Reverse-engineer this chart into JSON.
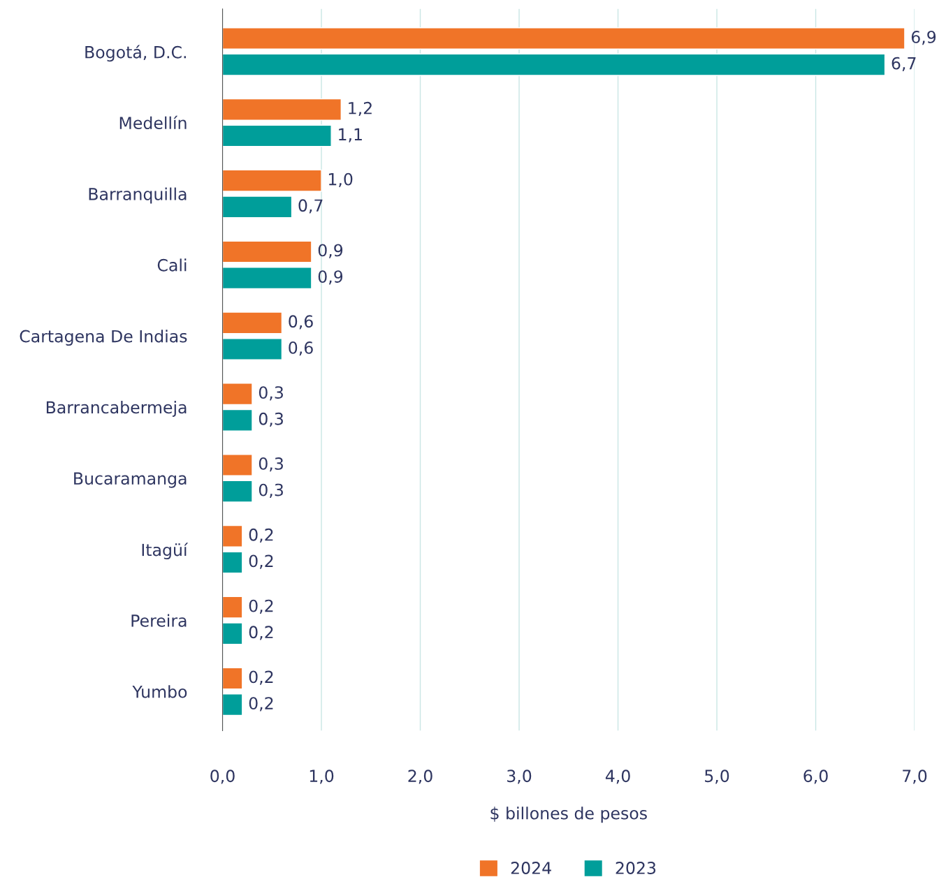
{
  "chart_data": {
    "type": "bar",
    "orientation": "horizontal",
    "xlabel": "$ billones de pesos",
    "categories": [
      "Bogotá, D.C.",
      "Medellín",
      "Barranquilla",
      "Cali",
      "Cartagena De Indias",
      "Barrancabermeja",
      "Bucaramanga",
      "Itagüí",
      "Pereira",
      "Yumbo"
    ],
    "series": [
      {
        "name": "2024",
        "color": "#f07428",
        "values": [
          6.9,
          1.2,
          1.0,
          0.9,
          0.6,
          0.3,
          0.3,
          0.2,
          0.2,
          0.2
        ],
        "value_labels": [
          "6,9",
          "1,2",
          "1,0",
          "0,9",
          "0,6",
          "0,3",
          "0,3",
          "0,2",
          "0,2",
          "0,2"
        ]
      },
      {
        "name": "2023",
        "color": "#009e9a",
        "values": [
          6.7,
          1.1,
          0.7,
          0.9,
          0.6,
          0.3,
          0.3,
          0.2,
          0.2,
          0.2
        ],
        "value_labels": [
          "6,7",
          "1,1",
          "0,7",
          "0,9",
          "0,6",
          "0,3",
          "0,3",
          "0,2",
          "0,2",
          "0,2"
        ]
      }
    ],
    "xlim": [
      0,
      7
    ],
    "xticks": [
      {
        "value": 0,
        "label": "0,0"
      },
      {
        "value": 1,
        "label": "1,0"
      },
      {
        "value": 2,
        "label": "2,0"
      },
      {
        "value": 3,
        "label": "3,0"
      },
      {
        "value": 4,
        "label": "4,0"
      },
      {
        "value": 5,
        "label": "5,0"
      },
      {
        "value": 6,
        "label": "6,0"
      },
      {
        "value": 7,
        "label": "7,0"
      }
    ],
    "grid": "x",
    "legend": "bottom"
  }
}
